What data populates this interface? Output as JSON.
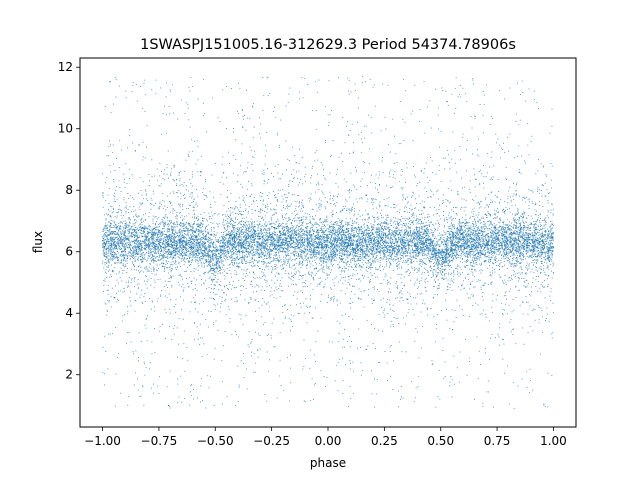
{
  "chart_data": {
    "type": "scatter",
    "title": "1SWASPJ151005.16-312629.3 Period 54374.78906s",
    "xlabel": "phase",
    "ylabel": "flux",
    "xlim": [
      -1.1,
      1.1
    ],
    "ylim": [
      0.3,
      12.3
    ],
    "x_ticks": [
      -1.0,
      -0.75,
      -0.5,
      -0.25,
      0.0,
      0.25,
      0.5,
      0.75,
      1.0
    ],
    "x_tick_labels": [
      "−1.00",
      "−0.75",
      "−0.50",
      "−0.25",
      "0.00",
      "0.25",
      "0.50",
      "0.75",
      "1.00"
    ],
    "y_ticks": [
      2,
      4,
      6,
      8,
      10,
      12
    ],
    "y_tick_labels": [
      "2",
      "4",
      "6",
      "8",
      "10",
      "12"
    ],
    "grid": false,
    "marker_color": "#1f77b4",
    "series": [
      {
        "phase_range": [
          -1.0,
          1.0
        ],
        "baseline_flux": 6.3,
        "core_spread": 0.35,
        "outer_range": [
          0.9,
          11.7
        ],
        "dips": [
          {
            "phase": -0.5,
            "min_flux": 5.8
          },
          {
            "phase": 0.5,
            "min_flux": 5.8
          }
        ],
        "approx_points": 60000
      }
    ]
  }
}
